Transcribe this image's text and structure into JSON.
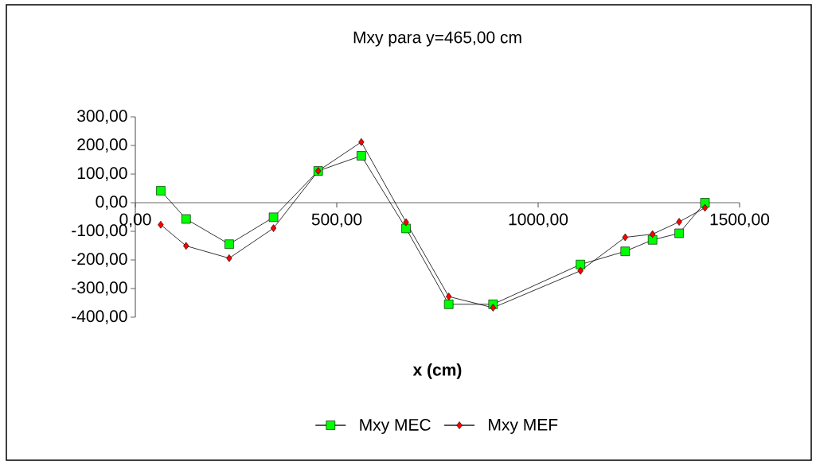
{
  "chart_data": {
    "type": "line",
    "title": "Mxy  para y=465,00 cm",
    "xlabel": "x (cm)",
    "xlim": [
      0,
      1500
    ],
    "ylim": [
      -400,
      300
    ],
    "xticks": [
      {
        "value": 0,
        "label": "0,00"
      },
      {
        "value": 500,
        "label": "500,00"
      },
      {
        "value": 1000,
        "label": "1000,00"
      },
      {
        "value": 1500,
        "label": "1500,00"
      }
    ],
    "yticks": [
      {
        "value": -400,
        "label": "-400,00"
      },
      {
        "value": -300,
        "label": "-300,00"
      },
      {
        "value": -200,
        "label": "-200,00"
      },
      {
        "value": -100,
        "label": "-100,00"
      },
      {
        "value": 0,
        "label": "0,00"
      },
      {
        "value": 100,
        "label": "100,00"
      },
      {
        "value": 200,
        "label": "200,00"
      },
      {
        "value": 300,
        "label": "300,00"
      }
    ],
    "x": [
      63,
      126,
      233,
      343,
      454,
      561,
      672,
      778,
      888,
      1105,
      1216,
      1284,
      1350,
      1414
    ],
    "legend": "bottom",
    "series": [
      {
        "name": "Mxy  MEC",
        "color": "#00ff00",
        "marker": "square",
        "values": [
          42,
          -57,
          -145,
          -51,
          111,
          164,
          -90,
          -355,
          -355,
          -216,
          -170,
          -130,
          -107,
          0
        ]
      },
      {
        "name": "Mxy  MEF",
        "color": "#ff0000",
        "marker": "diamond",
        "values": [
          -77,
          -151,
          -194,
          -89,
          111,
          212,
          -68,
          -328,
          -367,
          -238,
          -121,
          -110,
          -67,
          -18
        ]
      }
    ]
  }
}
